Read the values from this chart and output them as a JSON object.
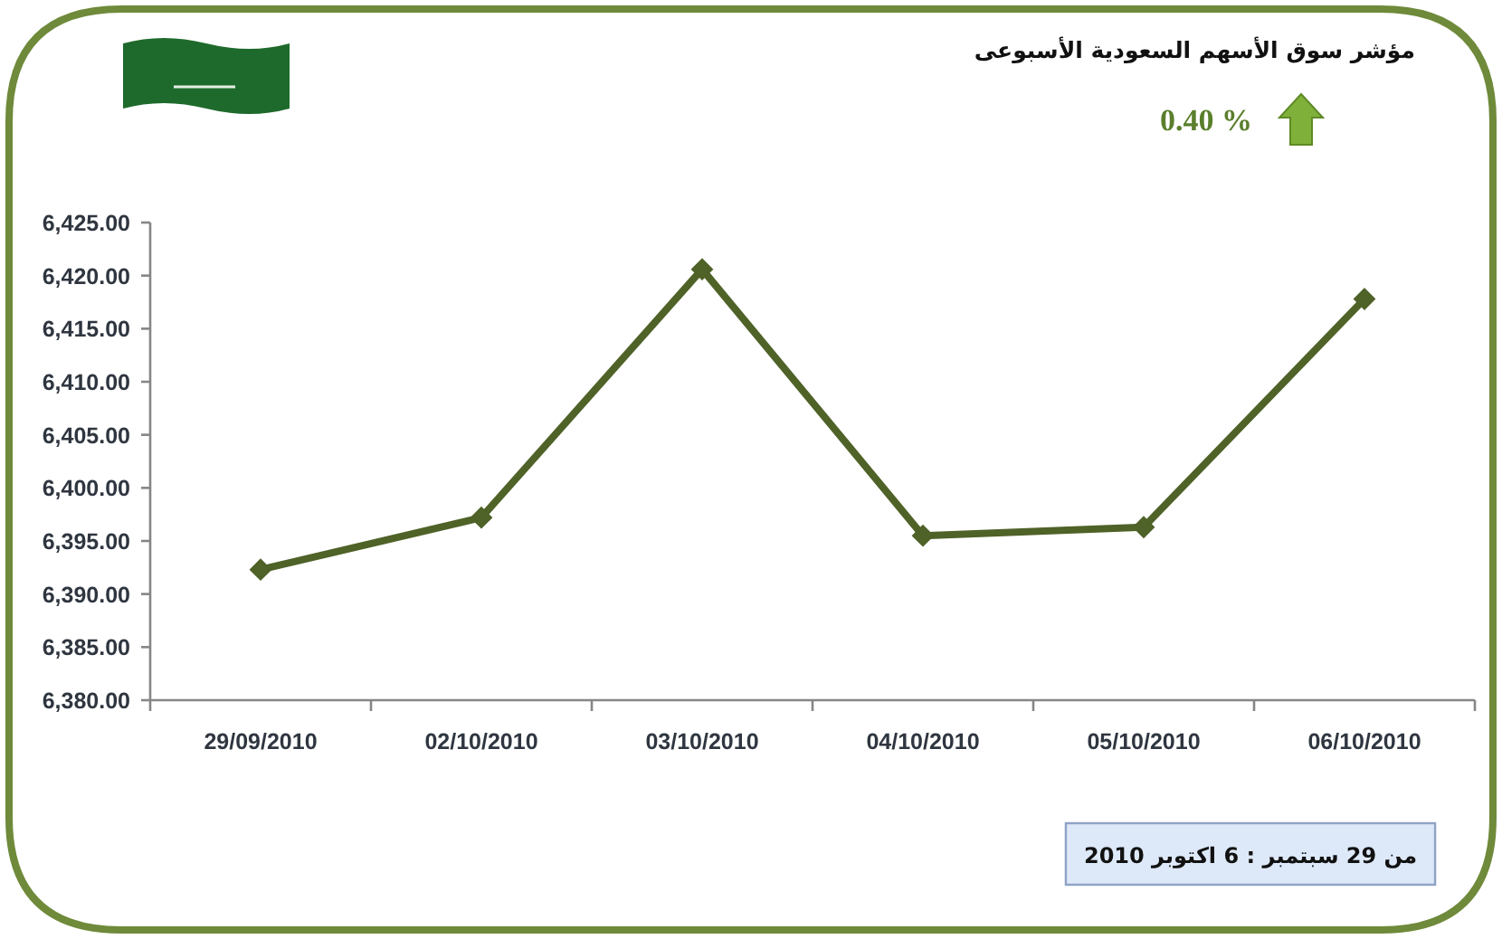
{
  "chart_data": {
    "type": "line",
    "title": "مؤشر سوق الأسهم السعودية الأسبوعى",
    "annotations": [
      "0.40 %",
      "من 29 سبتمبر : 6 اكتوبر 2010"
    ],
    "categories": [
      "29/09/2010",
      "02/10/2010",
      "03/10/2010",
      "04/10/2010",
      "05/10/2010",
      "06/10/2010"
    ],
    "series": [
      {
        "color": "#4f6228",
        "values": [
          6392.3,
          6397.2,
          6420.6,
          6395.5,
          6396.3,
          6417.8
        ]
      }
    ],
    "ylim": [
      6380,
      6425
    ],
    "yticks": [
      {
        "value": 6380,
        "label": "6,380.00"
      },
      {
        "value": 6385,
        "label": "6,385.00"
      },
      {
        "value": 6390,
        "label": "6,390.00"
      },
      {
        "value": 6395,
        "label": "6,395.00"
      },
      {
        "value": 6400,
        "label": "6,400.00"
      },
      {
        "value": 6405,
        "label": "6,405.00"
      },
      {
        "value": 6410,
        "label": "6,410.00"
      },
      {
        "value": 6415,
        "label": "6,415.00"
      },
      {
        "value": 6420,
        "label": "6,420.00"
      },
      {
        "value": 6425,
        "label": "6,425.00"
      }
    ],
    "marker": "diamond"
  }
}
